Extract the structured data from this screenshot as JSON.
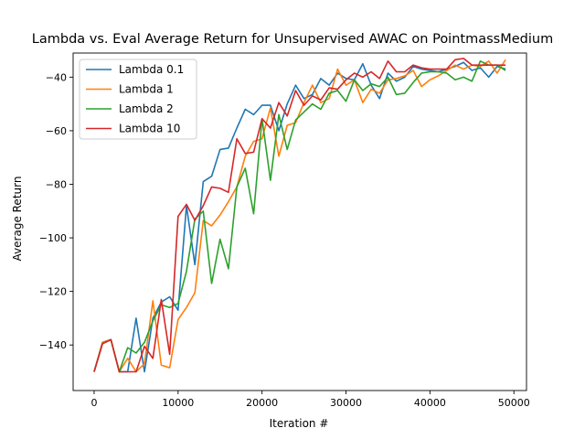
{
  "chart_data": {
    "type": "line",
    "title": "Lambda vs. Eval Average Return for Unsupervised AWAC on PointmassMedium",
    "xlabel": "Iteration #",
    "ylabel": "Average Return",
    "xlim": [
      -2500,
      51500
    ],
    "ylim": [
      -157,
      -31
    ],
    "xticks": [
      0,
      10000,
      20000,
      30000,
      40000,
      50000
    ],
    "yticks": [
      -140,
      -120,
      -100,
      -80,
      -60,
      -40
    ],
    "grid": false,
    "legend_position": "top-left",
    "x": [
      0,
      1000,
      2000,
      3000,
      4000,
      5000,
      6000,
      7000,
      8000,
      9000,
      10000,
      11000,
      12000,
      13000,
      14000,
      15000,
      16000,
      17000,
      18000,
      19000,
      20000,
      21000,
      22000,
      23000,
      24000,
      25000,
      26000,
      27000,
      28000,
      29000,
      30000,
      31000,
      32000,
      33000,
      34000,
      35000,
      36000,
      37000,
      38000,
      39000,
      40000,
      41000,
      42000,
      43000,
      44000,
      45000,
      46000,
      47000,
      48000,
      49000
    ],
    "series": [
      {
        "name": "Lambda 0.1",
        "color": "#1f77b4",
        "values": [
          -150,
          -139,
          -138,
          -150,
          -150,
          -130,
          -150,
          -130,
          -124,
          -122,
          -127,
          -88,
          -110,
          -79,
          -77,
          -67,
          -66.5,
          -59,
          -52,
          -54,
          -50.5,
          -50.5,
          -60,
          -50,
          -43,
          -48,
          -46.5,
          -40.5,
          -43,
          -38.5,
          -40.5,
          -41,
          -35,
          -43,
          -48,
          -38.5,
          -41.5,
          -40,
          -36,
          -37,
          -37.5,
          -38,
          -37,
          -36,
          -34.5,
          -37.5,
          -36.5,
          -40,
          -36,
          -37
        ]
      },
      {
        "name": "Lambda 1",
        "color": "#ff7f0e",
        "values": [
          -150,
          -139,
          -138,
          -150,
          -145,
          -150,
          -147,
          -123.5,
          -147.5,
          -148.5,
          -130.5,
          -126,
          -120.5,
          -93.5,
          -95.5,
          -91.5,
          -86.5,
          -81,
          -69.5,
          -64,
          -63,
          -51.5,
          -69.5,
          -58,
          -57,
          -49.5,
          -43,
          -49.5,
          -48,
          -37,
          -43,
          -41,
          -49.5,
          -44.5,
          -46,
          -41,
          -40.5,
          -39.5,
          -37.5,
          -43.5,
          -41,
          -39.5,
          -37.5,
          -35.5,
          -37,
          -35.5,
          -36,
          -34,
          -38.5,
          -33.5
        ]
      },
      {
        "name": "Lambda 2",
        "color": "#2ca02c",
        "values": [
          -150,
          -139.5,
          -138,
          -150,
          -141,
          -143,
          -139,
          -131,
          -125,
          -126,
          -124.5,
          -112.5,
          -93,
          -90,
          -117,
          -100.5,
          -111.5,
          -81,
          -74,
          -91,
          -55.5,
          -78.5,
          -54,
          -67,
          -56,
          -53,
          -50,
          -52,
          -46,
          -45,
          -49,
          -41,
          -45,
          -42.5,
          -43.5,
          -40,
          -46.5,
          -46,
          -42,
          -38.5,
          -38,
          -38,
          -38.5,
          -41,
          -40,
          -41.5,
          -34,
          -35.5,
          -35.5,
          -37.5
        ]
      },
      {
        "name": "Lambda 10",
        "color": "#d62728",
        "values": [
          -150,
          -139.5,
          -138,
          -150,
          -150,
          -150,
          -140.5,
          -145,
          -123,
          -143.5,
          -92,
          -87.5,
          -93.5,
          -88,
          -81,
          -81.5,
          -83,
          -63,
          -68.5,
          -68,
          -55.5,
          -59,
          -49.5,
          -54.5,
          -45,
          -50.5,
          -47,
          -48.5,
          -44,
          -44.5,
          -41,
          -38.5,
          -40,
          -38,
          -40.5,
          -34,
          -38,
          -38,
          -35.5,
          -36.5,
          -37,
          -37,
          -37,
          -33.5,
          -33,
          -35.5,
          -35.5,
          -35.5,
          -35.5,
          -35.5
        ]
      }
    ]
  }
}
